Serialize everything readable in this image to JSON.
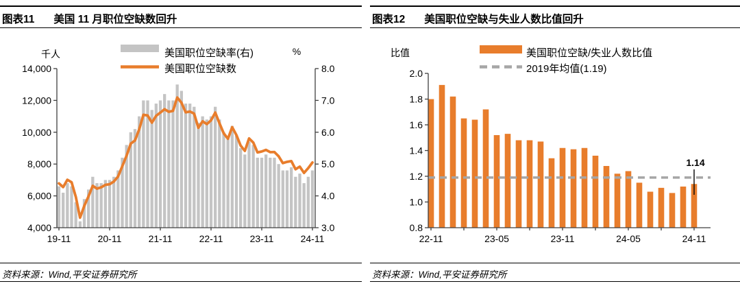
{
  "panels": [
    {
      "tag": "图表11",
      "title": "美国 11 月职位空缺数回升",
      "source": "资料来源：Wind,平安证券研究所",
      "chart_data": {
        "type": "bar+line",
        "left_axis": {
          "unit": "千人",
          "min": 4000,
          "max": 14000,
          "tick_step": 2000
        },
        "right_axis": {
          "unit": "%",
          "min": 3.0,
          "max": 8.0,
          "tick_step": 1.0
        },
        "x_start": "19-11",
        "x_tick_labels": [
          "19-11",
          "20-11",
          "21-11",
          "22-11",
          "23-11",
          "24-11"
        ],
        "x_label_every_months": 12,
        "legend_position": "top-center",
        "series": [
          {
            "name": "美国职位空缺率(右)",
            "type": "bar",
            "axis": "right",
            "color": "#C4C4C4",
            "values": [
              4.3,
              4.1,
              4.4,
              4.3,
              3.8,
              3.2,
              3.9,
              4.2,
              4.6,
              4.4,
              4.4,
              4.5,
              4.5,
              4.6,
              4.8,
              5.2,
              5.6,
              6.0,
              6.1,
              6.5,
              7.0,
              7.0,
              6.7,
              6.9,
              7.0,
              7.2,
              7.0,
              7.0,
              7.5,
              7.3,
              6.9,
              6.9,
              6.8,
              6.3,
              6.5,
              6.4,
              6.5,
              6.8,
              6.4,
              6.0,
              5.8,
              6.2,
              5.9,
              5.5,
              5.3,
              5.7,
              5.6,
              5.2,
              5.2,
              5.3,
              5.2,
              5.2,
              5.0,
              4.8,
              4.8,
              4.9,
              4.6,
              4.7,
              4.4,
              4.6,
              4.8
            ]
          },
          {
            "name": "美国职位空缺数",
            "type": "line",
            "axis": "left",
            "color": "#E87D2C",
            "values": [
              6787,
              6552,
              7012,
              6856,
              5934,
              4630,
              5371,
              5971,
              6633,
              6452,
              6538,
              6695,
              6731,
              6904,
              7219,
              7866,
              8523,
              9286,
              9483,
              10185,
              11098,
              11054,
              10602,
              11033,
              11234,
              11448,
              11283,
              11344,
              12182,
              11855,
              11254,
              11303,
              11170,
              10280,
              10687,
              10512,
              10746,
              11234,
              10563,
              9931,
              9590,
              10320,
              9824,
              9165,
              8827,
              9610,
              9350,
              8730,
              8790,
              8890,
              8748,
              8756,
              8488,
              8059,
              8140,
              8184,
              7673,
              7839,
              7443,
              7744,
              8098
            ]
          }
        ]
      }
    },
    {
      "tag": "图表12",
      "title": "美国职位空缺与失业人数比值回升",
      "source": "资料来源：Wind,平安证券研究所",
      "chart_data": {
        "type": "bar",
        "y_axis": {
          "unit": "比值",
          "min": 0.8,
          "max": 2.0,
          "tick_step": 0.2
        },
        "x_start": "22-11",
        "x_tick_labels": [
          "22-11",
          "23-05",
          "23-11",
          "24-05",
          "24-11"
        ],
        "x_label_every_months": 6,
        "x_minor_tick_every_months": 3,
        "legend_position": "top-center",
        "series": [
          {
            "name": "美国职位空缺/失业人数比值",
            "type": "bar",
            "color": "#E87D2C",
            "values": [
              1.8,
              1.91,
              1.82,
              1.65,
              1.64,
              1.72,
              1.52,
              1.53,
              1.48,
              1.48,
              1.47,
              1.34,
              1.42,
              1.41,
              1.42,
              1.36,
              1.28,
              1.22,
              1.24,
              1.15,
              1.08,
              1.11,
              1.07,
              1.12,
              1.14
            ]
          }
        ],
        "reference_line": {
          "name": "2019年均值(1.19)",
          "value": 1.19,
          "color": "#A6A6A6",
          "style": "dashed"
        },
        "annotation": {
          "text": "1.14",
          "month_index": 24
        }
      }
    }
  ]
}
